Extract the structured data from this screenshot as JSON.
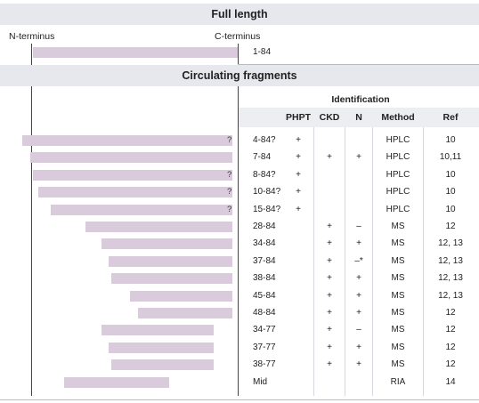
{
  "sections": {
    "full_length_title": "Full length",
    "circulating_title": "Circulating fragments"
  },
  "full_length": {
    "n_terminus": "N-terminus",
    "c_terminus": "C-terminus",
    "fragment": "1-84"
  },
  "identification": {
    "title": "Identification",
    "columns": [
      "PHPT",
      "CKD",
      "N",
      "Method",
      "Ref"
    ]
  },
  "fragments": [
    {
      "name": "4-84?",
      "phpt": "+",
      "ckd": "",
      "n": "",
      "method": "HPLC",
      "ref": "10",
      "uncertain": true,
      "start": 4,
      "end": 84
    },
    {
      "name": "7-84",
      "phpt": "+",
      "ckd": "+",
      "n": "+",
      "method": "HPLC",
      "ref": "10,11",
      "uncertain": false,
      "start": 7,
      "end": 84
    },
    {
      "name": "8-84?",
      "phpt": "+",
      "ckd": "",
      "n": "",
      "method": "HPLC",
      "ref": "10",
      "uncertain": true,
      "start": 8,
      "end": 84
    },
    {
      "name": "10-84?",
      "phpt": "+",
      "ckd": "",
      "n": "",
      "method": "HPLC",
      "ref": "10",
      "uncertain": true,
      "start": 10,
      "end": 84
    },
    {
      "name": "15-84?",
      "phpt": "+",
      "ckd": "",
      "n": "",
      "method": "HPLC",
      "ref": "10",
      "uncertain": true,
      "start": 15,
      "end": 84
    },
    {
      "name": "28-84",
      "phpt": "",
      "ckd": "+",
      "n": "–",
      "method": "MS",
      "ref": "12",
      "uncertain": false,
      "start": 28,
      "end": 84
    },
    {
      "name": "34-84",
      "phpt": "",
      "ckd": "+",
      "n": "+",
      "method": "MS",
      "ref": "12, 13",
      "uncertain": false,
      "start": 34,
      "end": 84
    },
    {
      "name": "37-84",
      "phpt": "",
      "ckd": "+",
      "n": "–*",
      "method": "MS",
      "ref": "12, 13",
      "uncertain": false,
      "start": 37,
      "end": 84
    },
    {
      "name": "38-84",
      "phpt": "",
      "ckd": "+",
      "n": "+",
      "method": "MS",
      "ref": "12, 13",
      "uncertain": false,
      "start": 38,
      "end": 84
    },
    {
      "name": "45-84",
      "phpt": "",
      "ckd": "+",
      "n": "+",
      "method": "MS",
      "ref": "12, 13",
      "uncertain": false,
      "start": 45,
      "end": 84
    },
    {
      "name": "48-84",
      "phpt": "",
      "ckd": "+",
      "n": "+",
      "method": "MS",
      "ref": "12",
      "uncertain": false,
      "start": 48,
      "end": 84
    },
    {
      "name": "34-77",
      "phpt": "",
      "ckd": "+",
      "n": "–",
      "method": "MS",
      "ref": "12",
      "uncertain": false,
      "start": 34,
      "end": 77
    },
    {
      "name": "37-77",
      "phpt": "",
      "ckd": "+",
      "n": "+",
      "method": "MS",
      "ref": "12",
      "uncertain": false,
      "start": 37,
      "end": 77
    },
    {
      "name": "38-77",
      "phpt": "",
      "ckd": "+",
      "n": "+",
      "method": "MS",
      "ref": "12",
      "uncertain": false,
      "start": 38,
      "end": 77
    },
    {
      "name": "Mid",
      "phpt": "",
      "ckd": "",
      "n": "",
      "method": "RIA",
      "ref": "14",
      "uncertain": false,
      "start": 20,
      "end": 60
    }
  ],
  "colors": {
    "band": "#e6e8ee",
    "bar": "#d9cbdb",
    "header_bg": "#eceef2"
  }
}
